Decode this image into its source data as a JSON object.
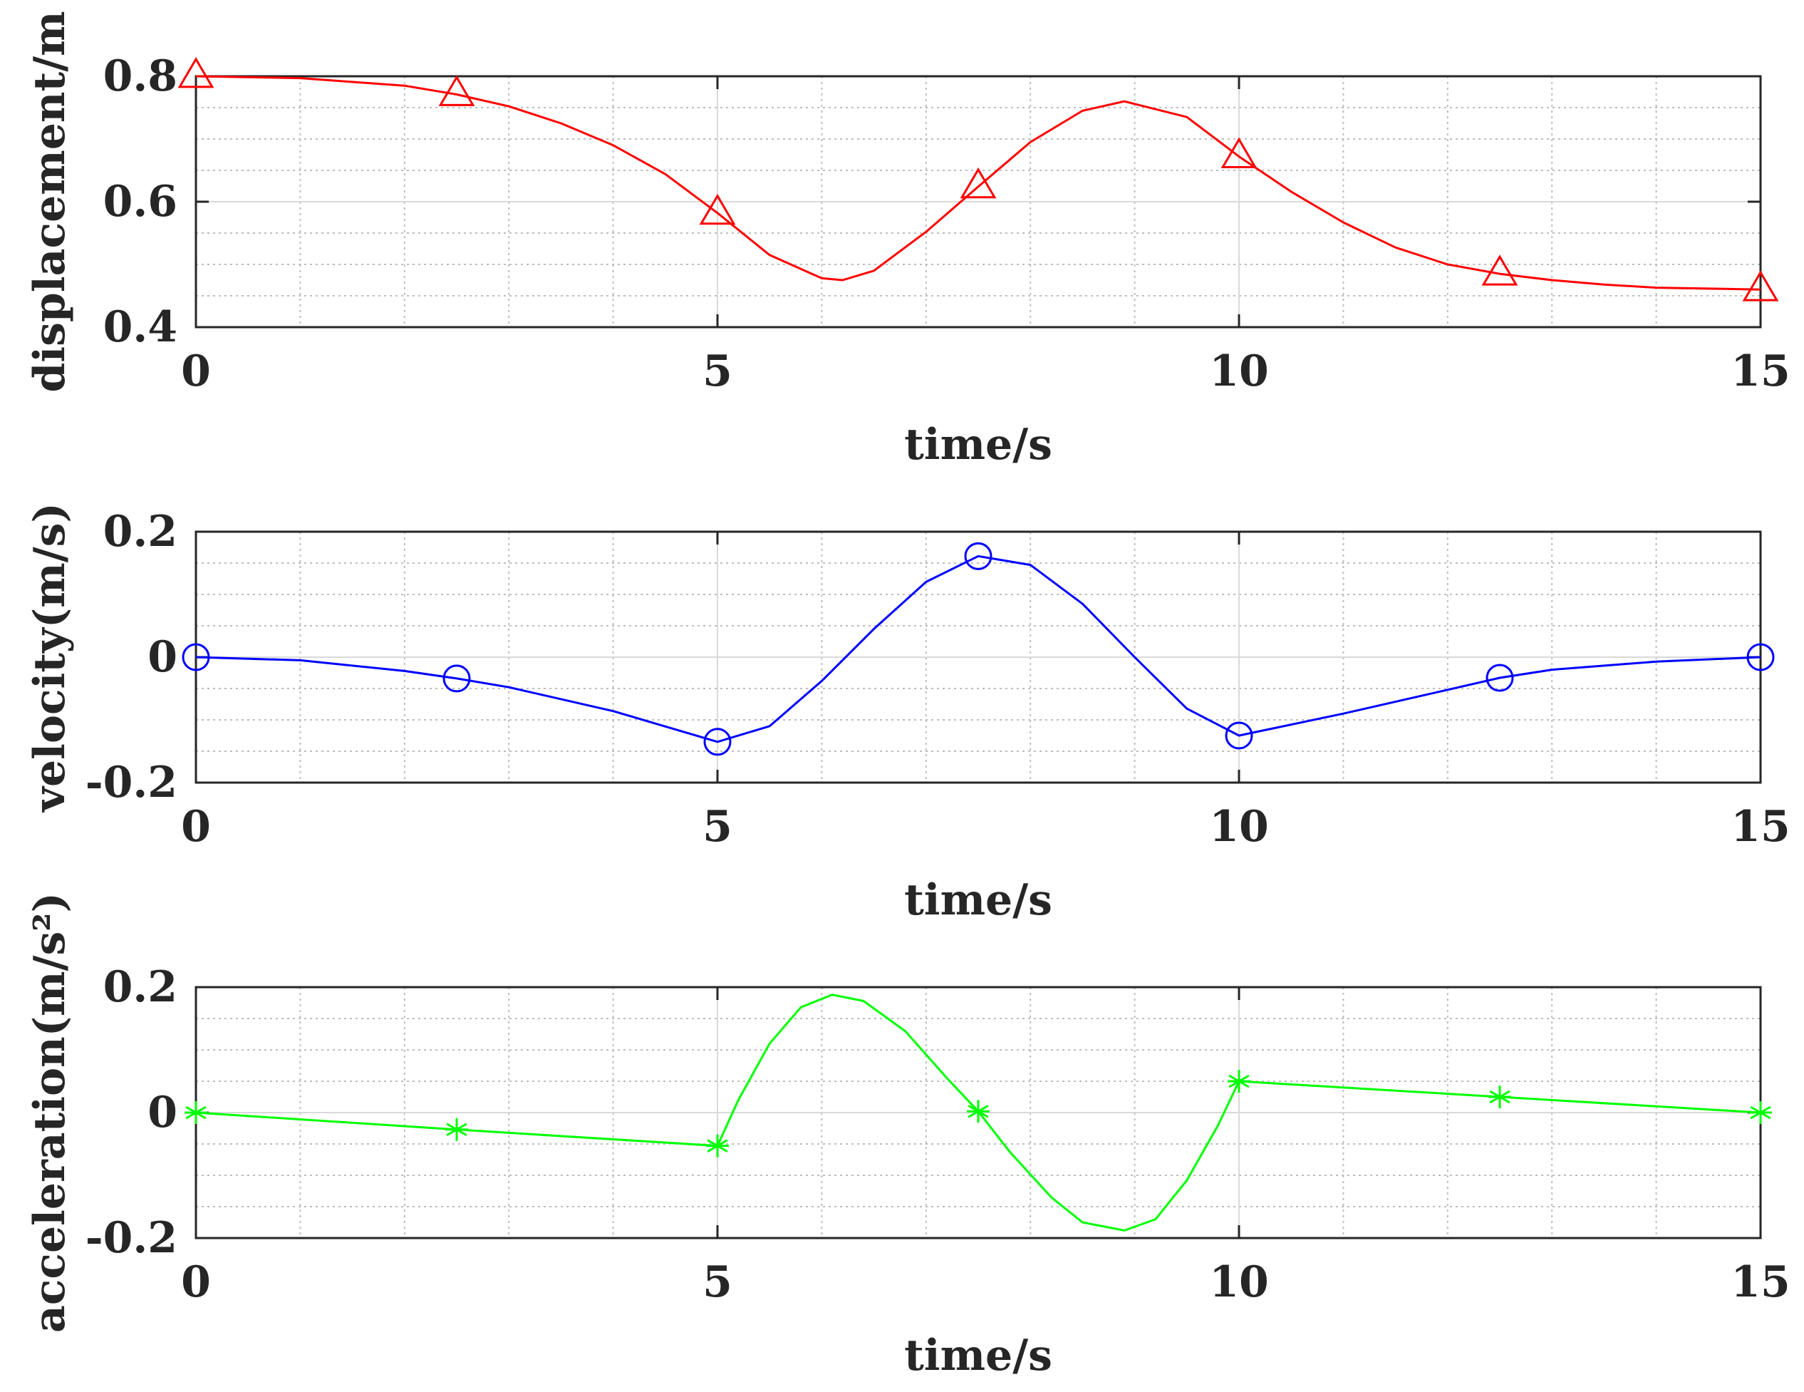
{
  "chart_data": [
    {
      "type": "line",
      "xlabel": "time/s",
      "ylabel": "displacement/m",
      "xlim": [
        0,
        15
      ],
      "ylim": [
        0.4,
        0.8
      ],
      "xticks": [
        0,
        5,
        10,
        15
      ],
      "yticks": [
        0.4,
        0.6,
        0.8
      ],
      "grid": true,
      "series": [
        {
          "color": "#ff0000",
          "marker": "triangle",
          "x": [
            0,
            1,
            2,
            2.5,
            3,
            3.5,
            4,
            4.5,
            5,
            5.5,
            6,
            6.2,
            6.5,
            7,
            7.5,
            8,
            8.5,
            8.9,
            9.5,
            10,
            10.5,
            11,
            11.5,
            12,
            12.5,
            13,
            13.5,
            14,
            15
          ],
          "y": [
            0.8,
            0.797,
            0.785,
            0.771,
            0.752,
            0.725,
            0.69,
            0.644,
            0.582,
            0.515,
            0.478,
            0.475,
            0.49,
            0.552,
            0.624,
            0.695,
            0.745,
            0.76,
            0.735,
            0.672,
            0.616,
            0.567,
            0.527,
            0.5,
            0.485,
            0.475,
            0.468,
            0.463,
            0.46
          ],
          "markers_x": [
            0,
            2.5,
            5,
            7.5,
            10,
            12.5,
            15
          ],
          "markers_y": [
            0.8,
            0.771,
            0.582,
            0.624,
            0.672,
            0.485,
            0.46
          ]
        }
      ]
    },
    {
      "type": "line",
      "xlabel": "time/s",
      "ylabel": "velocity(m/s)",
      "xlim": [
        0,
        15
      ],
      "ylim": [
        -0.2,
        0.2
      ],
      "xticks": [
        0,
        5,
        10,
        15
      ],
      "yticks": [
        -0.2,
        0,
        0.2
      ],
      "ytick_labels": [
        "-0.2",
        "0",
        "0.2"
      ],
      "grid": true,
      "series": [
        {
          "color": "#0000ff",
          "marker": "circle",
          "x": [
            0,
            1,
            2,
            2.5,
            3,
            4,
            5,
            5.5,
            6,
            6.5,
            7,
            7.5,
            8,
            8.5,
            9,
            9.5,
            10,
            11,
            12,
            12.5,
            13,
            14,
            15
          ],
          "y": [
            0,
            -0.005,
            -0.022,
            -0.034,
            -0.048,
            -0.086,
            -0.135,
            -0.11,
            -0.038,
            0.045,
            0.12,
            0.161,
            0.147,
            0.085,
            0.0,
            -0.082,
            -0.125,
            -0.09,
            -0.052,
            -0.033,
            -0.02,
            -0.007,
            0
          ],
          "markers_x": [
            0,
            2.5,
            5,
            7.5,
            10,
            12.5,
            15
          ],
          "markers_y": [
            0,
            -0.034,
            -0.135,
            0.161,
            -0.125,
            -0.033,
            0
          ]
        }
      ]
    },
    {
      "type": "line",
      "xlabel": "time/s",
      "ylabel": "acceleration(m/s²)",
      "xlim": [
        0,
        15
      ],
      "ylim": [
        -0.2,
        0.2
      ],
      "xticks": [
        0,
        5,
        10,
        15
      ],
      "yticks": [
        -0.2,
        0,
        0.2
      ],
      "ytick_labels": [
        "-0.2",
        "0",
        "0.2"
      ],
      "grid": true,
      "series": [
        {
          "color": "#00ff00",
          "marker": "asterisk",
          "x": [
            0,
            2.5,
            5,
            5.2,
            5.5,
            5.8,
            6.1,
            6.4,
            6.8,
            7.2,
            7.5,
            7.8,
            8.2,
            8.5,
            8.9,
            9.2,
            9.5,
            9.8,
            10,
            12.5,
            15
          ],
          "y": [
            0,
            -0.027,
            -0.053,
            0.02,
            0.11,
            0.168,
            0.188,
            0.178,
            0.13,
            0.055,
            0.002,
            -0.062,
            -0.135,
            -0.175,
            -0.188,
            -0.17,
            -0.108,
            -0.02,
            0.05,
            0.025,
            0
          ],
          "markers_x": [
            0,
            2.5,
            5,
            7.5,
            10,
            12.5,
            15
          ],
          "markers_y": [
            0,
            -0.027,
            -0.053,
            0.002,
            0.05,
            0.025,
            0
          ]
        }
      ]
    }
  ]
}
